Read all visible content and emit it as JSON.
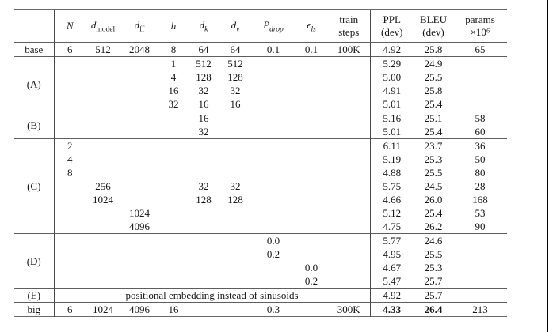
{
  "page": {
    "background": "#ffffff",
    "right_edge_line_color": "#000000",
    "text_color": "#161616",
    "rule_color": "#5e5e5e"
  },
  "table": {
    "columns": [
      {
        "key": "label",
        "header": {
          "main": "",
          "sub": "",
          "line1": "",
          "line2": ""
        }
      },
      {
        "key": "N",
        "header": {
          "main": "N",
          "sub": ""
        }
      },
      {
        "key": "d_model",
        "header": {
          "main": "d",
          "sub": "model"
        }
      },
      {
        "key": "d_ff",
        "header": {
          "main": "d",
          "sub": "ff"
        }
      },
      {
        "key": "h",
        "header": {
          "main": "h",
          "sub": ""
        }
      },
      {
        "key": "d_k",
        "header": {
          "main": "d",
          "sub": "k"
        }
      },
      {
        "key": "d_v",
        "header": {
          "main": "d",
          "sub": "v"
        }
      },
      {
        "key": "P_drop",
        "header": {
          "main": "P",
          "sub": "drop"
        }
      },
      {
        "key": "eps_ls",
        "header": {
          "main": "ϵ",
          "sub": "ls"
        }
      },
      {
        "key": "train_steps",
        "header": {
          "line1": "train",
          "line2": "steps"
        }
      },
      {
        "key": "ppl_dev",
        "header": {
          "line1": "PPL",
          "line2": "(dev)"
        }
      },
      {
        "key": "bleu_dev",
        "header": {
          "line1": "BLEU",
          "line2": "(dev)"
        }
      },
      {
        "key": "params",
        "header": {
          "line1": "params",
          "line2": "×10⁶"
        }
      }
    ],
    "sections": [
      {
        "label": "base",
        "rows": [
          [
            "6",
            "512",
            "2048",
            "8",
            "64",
            "64",
            "0.1",
            "0.1",
            "100K",
            "4.92",
            "25.8",
            "65"
          ]
        ]
      },
      {
        "label": "(A)",
        "rows": [
          [
            "",
            "",
            "",
            "1",
            "512",
            "512",
            "",
            "",
            "",
            "5.29",
            "24.9",
            ""
          ],
          [
            "",
            "",
            "",
            "4",
            "128",
            "128",
            "",
            "",
            "",
            "5.00",
            "25.5",
            ""
          ],
          [
            "",
            "",
            "",
            "16",
            "32",
            "32",
            "",
            "",
            "",
            "4.91",
            "25.8",
            ""
          ],
          [
            "",
            "",
            "",
            "32",
            "16",
            "16",
            "",
            "",
            "",
            "5.01",
            "25.4",
            ""
          ]
        ]
      },
      {
        "label": "(B)",
        "rows": [
          [
            "",
            "",
            "",
            "",
            "16",
            "",
            "",
            "",
            "",
            "5.16",
            "25.1",
            "58"
          ],
          [
            "",
            "",
            "",
            "",
            "32",
            "",
            "",
            "",
            "",
            "5.01",
            "25.4",
            "60"
          ]
        ]
      },
      {
        "label": "(C)",
        "rows": [
          [
            "2",
            "",
            "",
            "",
            "",
            "",
            "",
            "",
            "",
            "6.11",
            "23.7",
            "36"
          ],
          [
            "4",
            "",
            "",
            "",
            "",
            "",
            "",
            "",
            "",
            "5.19",
            "25.3",
            "50"
          ],
          [
            "8",
            "",
            "",
            "",
            "",
            "",
            "",
            "",
            "",
            "4.88",
            "25.5",
            "80"
          ],
          [
            "",
            "256",
            "",
            "",
            "32",
            "32",
            "",
            "",
            "",
            "5.75",
            "24.5",
            "28"
          ],
          [
            "",
            "1024",
            "",
            "",
            "128",
            "128",
            "",
            "",
            "",
            "4.66",
            "26.0",
            "168"
          ],
          [
            "",
            "",
            "1024",
            "",
            "",
            "",
            "",
            "",
            "",
            "5.12",
            "25.4",
            "53"
          ],
          [
            "",
            "",
            "4096",
            "",
            "",
            "",
            "",
            "",
            "",
            "4.75",
            "26.2",
            "90"
          ]
        ]
      },
      {
        "label": "(D)",
        "rows": [
          [
            "",
            "",
            "",
            "",
            "",
            "",
            "0.0",
            "",
            "",
            "5.77",
            "24.6",
            ""
          ],
          [
            "",
            "",
            "",
            "",
            "",
            "",
            "0.2",
            "",
            "",
            "4.95",
            "25.5",
            ""
          ],
          [
            "",
            "",
            "",
            "",
            "",
            "",
            "",
            "0.0",
            "",
            "4.67",
            "25.3",
            ""
          ],
          [
            "",
            "",
            "",
            "",
            "",
            "",
            "",
            "0.2",
            "",
            "5.47",
            "25.7",
            ""
          ]
        ]
      },
      {
        "label": "(E)",
        "merged_text": "positional embedding instead of sinusoids",
        "rows": [
          [
            "",
            "",
            "",
            "",
            "",
            "",
            "",
            "",
            "",
            "4.92",
            "25.7",
            ""
          ]
        ]
      },
      {
        "label": "big",
        "bold_cols": [
          9,
          10
        ],
        "rows": [
          [
            "6",
            "1024",
            "4096",
            "16",
            "",
            "",
            "0.3",
            "",
            "300K",
            "4.33",
            "26.4",
            "213"
          ]
        ]
      }
    ]
  }
}
